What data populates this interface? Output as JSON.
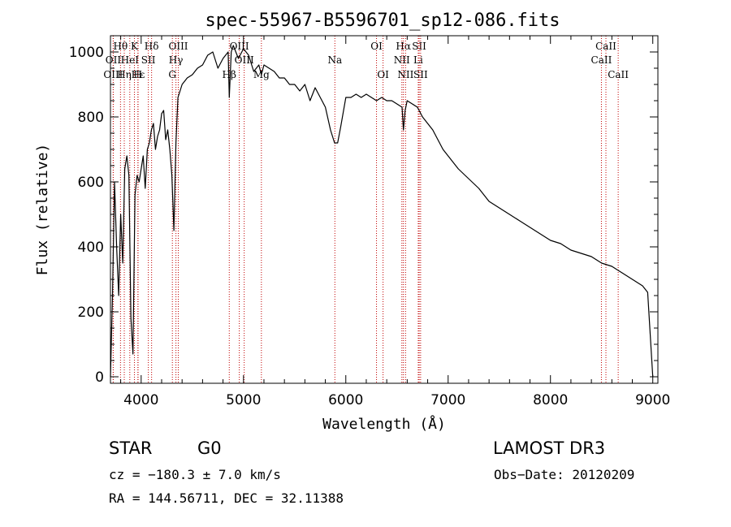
{
  "chart_data": {
    "type": "line",
    "title": "spec-55967-B5596701_sp12-086.fits",
    "xlabel": "Wavelength (Å)",
    "ylabel": "Flux (relative)",
    "xlim": [
      3700,
      9050
    ],
    "ylim": [
      -20,
      1050
    ],
    "xticks": [
      4000,
      5000,
      6000,
      7000,
      8000,
      9000
    ],
    "yticks": [
      0,
      200,
      400,
      600,
      800,
      1000
    ],
    "grid": false,
    "series": [
      {
        "name": "flux",
        "x": [
          3700,
          3720,
          3740,
          3760,
          3780,
          3800,
          3820,
          3840,
          3860,
          3880,
          3900,
          3920,
          3940,
          3960,
          3980,
          4000,
          4020,
          4040,
          4060,
          4080,
          4100,
          4120,
          4140,
          4160,
          4180,
          4200,
          4220,
          4240,
          4260,
          4280,
          4300,
          4320,
          4340,
          4360,
          4380,
          4400,
          4450,
          4500,
          4550,
          4600,
          4650,
          4700,
          4750,
          4800,
          4850,
          4861,
          4880,
          4900,
          4950,
          5000,
          5050,
          5100,
          5150,
          5175,
          5200,
          5250,
          5300,
          5350,
          5400,
          5450,
          5500,
          5550,
          5600,
          5650,
          5700,
          5750,
          5800,
          5850,
          5890,
          5920,
          5950,
          6000,
          6050,
          6100,
          6150,
          6200,
          6250,
          6300,
          6350,
          6400,
          6450,
          6500,
          6550,
          6563,
          6580,
          6600,
          6650,
          6700,
          6750,
          6800,
          6850,
          6900,
          6950,
          7000,
          7100,
          7200,
          7300,
          7400,
          7500,
          7600,
          7700,
          7800,
          7900,
          8000,
          8100,
          8200,
          8300,
          8400,
          8500,
          8600,
          8700,
          8800,
          8900,
          8950,
          9000
        ],
        "y": [
          0,
          250,
          600,
          400,
          250,
          500,
          350,
          640,
          680,
          620,
          180,
          70,
          560,
          620,
          600,
          640,
          680,
          580,
          700,
          720,
          760,
          780,
          700,
          740,
          760,
          810,
          820,
          730,
          760,
          700,
          620,
          450,
          720,
          860,
          880,
          900,
          920,
          930,
          950,
          960,
          990,
          1000,
          950,
          980,
          1000,
          860,
          1000,
          1020,
          980,
          1010,
          990,
          940,
          960,
          930,
          960,
          950,
          940,
          920,
          920,
          900,
          900,
          880,
          900,
          850,
          890,
          860,
          830,
          760,
          720,
          720,
          770,
          860,
          860,
          870,
          860,
          870,
          860,
          850,
          860,
          850,
          850,
          840,
          830,
          760,
          820,
          850,
          840,
          830,
          800,
          780,
          760,
          730,
          700,
          680,
          640,
          610,
          580,
          540,
          520,
          500,
          480,
          460,
          440,
          420,
          410,
          390,
          380,
          370,
          350,
          340,
          320,
          300,
          280,
          260,
          0
        ]
      }
    ],
    "lines": [
      {
        "label": "Hθ",
        "wl": 3798,
        "row": 1
      },
      {
        "label": "OII",
        "wl": 3727,
        "row": 2
      },
      {
        "label": "OIII",
        "wl": 3727,
        "row": 3
      },
      {
        "label": "K",
        "wl": 3934,
        "row": 1
      },
      {
        "label": "HeI",
        "wl": 3889,
        "row": 2
      },
      {
        "label": "Hη",
        "wl": 3835,
        "row": 3
      },
      {
        "label": "Hε",
        "wl": 3970,
        "row": 3
      },
      {
        "label": "Hδ",
        "wl": 4102,
        "row": 1
      },
      {
        "label": "SII",
        "wl": 4070,
        "row": 2
      },
      {
        "label": "H",
        "wl": 3968,
        "row": 3
      },
      {
        "label": "OIII",
        "wl": 4363,
        "row": 1
      },
      {
        "label": "Hγ",
        "wl": 4340,
        "row": 2
      },
      {
        "label": "G",
        "wl": 4305,
        "row": 3
      },
      {
        "label": "Hβ",
        "wl": 4861,
        "row": 3
      },
      {
        "label": "OIII",
        "wl": 4959,
        "row": 1
      },
      {
        "label": "OIII",
        "wl": 5007,
        "row": 2
      },
      {
        "label": "Mg",
        "wl": 5175,
        "row": 3
      },
      {
        "label": "Na",
        "wl": 5893,
        "row": 2
      },
      {
        "label": "OI",
        "wl": 6300,
        "row": 1
      },
      {
        "label": "OI",
        "wl": 6364,
        "row": 3
      },
      {
        "label": "Hα",
        "wl": 6563,
        "row": 1
      },
      {
        "label": "NII",
        "wl": 6548,
        "row": 2
      },
      {
        "label": "NII",
        "wl": 6584,
        "row": 3
      },
      {
        "label": "SII",
        "wl": 6717,
        "row": 1
      },
      {
        "label": "Li",
        "wl": 6708,
        "row": 2
      },
      {
        "label": "SII",
        "wl": 6731,
        "row": 3
      },
      {
        "label": "CaII",
        "wl": 8542,
        "row": 1
      },
      {
        "label": "CaII",
        "wl": 8498,
        "row": 2
      },
      {
        "label": "CaII",
        "wl": 8662,
        "row": 3
      }
    ]
  },
  "info": {
    "class": "STAR",
    "subclass": "G0",
    "survey": "LAMOST DR3",
    "cz": "cz = −180.3 ± 7.0 km/s",
    "obs_date": "Obs−Date: 20120209",
    "radec": "RA = 144.56711, DEC =  32.11388"
  }
}
